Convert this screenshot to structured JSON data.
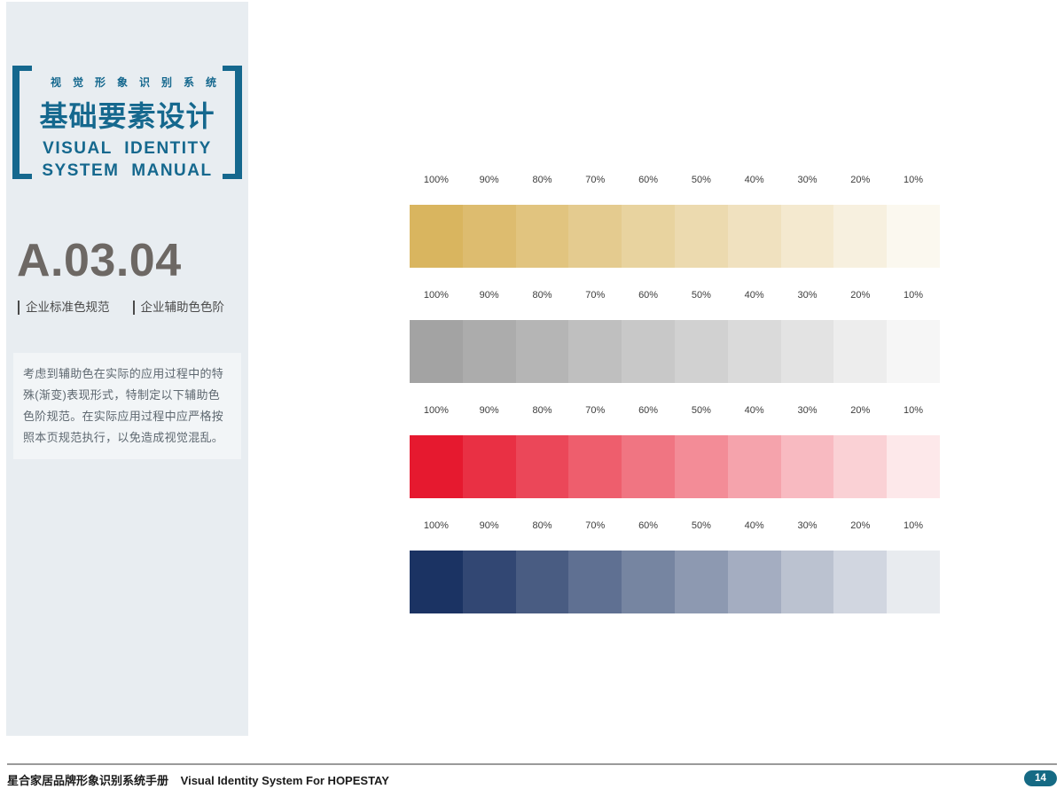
{
  "header": {
    "subtitle_cn": "视觉形象识别系统",
    "title_cn": "基础要素设计",
    "title_en_line1": "VISUAL IDENTITY",
    "title_en_line2": "SYSTEM MANUAL"
  },
  "section": {
    "code": "A.03.04",
    "subtitles": [
      "企业标准色规范",
      "企业辅助色色阶"
    ],
    "description": "考虑到辅助色在实际的应用过程中的特殊(渐变)表现形式，特制定以下辅助色色阶规范。在实际应用过程中应严格按照本页规范执行，以免造成视觉混乱。"
  },
  "color_scales": {
    "percent_labels": [
      "100%",
      "90%",
      "80%",
      "70%",
      "60%",
      "50%",
      "40%",
      "30%",
      "20%",
      "10%"
    ],
    "rows": [
      {
        "name": "gold",
        "base_hex": "#d9b55f"
      },
      {
        "name": "gray",
        "base_hex": "#a3a3a3"
      },
      {
        "name": "red",
        "base_hex": "#e6192f"
      },
      {
        "name": "navy",
        "base_hex": "#1b3363"
      }
    ]
  },
  "footer": {
    "text_cn": "星合家居品牌形象识别系统手册",
    "text_en": "Visual Identity System For HOPESTAY",
    "page_number": "14"
  },
  "colors": {
    "accent_teal": "#15688e",
    "sidebar_bg": "#e8edf1",
    "badge_bg": "#156a84",
    "label_gray": "#3d3d3d"
  }
}
